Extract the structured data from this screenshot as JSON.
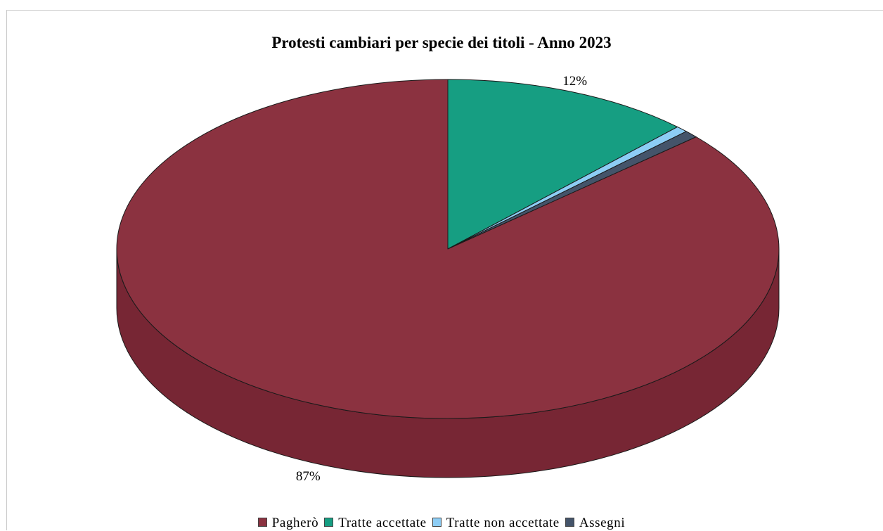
{
  "chart_data": {
    "type": "pie",
    "title": "Protesti cambiari per specie dei titoli - Anno 2023",
    "categories": [
      "Pagherò",
      "Tratte accettate",
      "Tratte non accettate",
      "Assegni"
    ],
    "values": [
      86.5,
      12.2,
      0.6,
      0.7
    ],
    "data_labels": [
      "87%",
      "12%",
      "",
      ""
    ],
    "colors": [
      "#8B3240",
      "#169E82",
      "#8DCDF5",
      "#44546A"
    ],
    "side_colors": [
      "#772634",
      "#0E7B66",
      "#5FA9D6",
      "#2E3B4C"
    ],
    "legend_position": "bottom",
    "three_d": true
  }
}
